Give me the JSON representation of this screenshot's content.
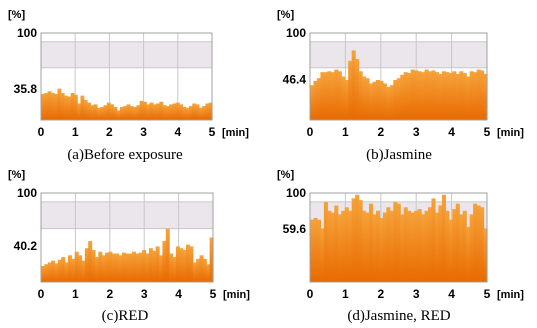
{
  "colors": {
    "bar_top": "#f6a23a",
    "bar_bottom": "#e86a00",
    "band_shade": "#eae6ec",
    "grid": "#c8c8c8",
    "frame": "#a0a0a0"
  },
  "chart_data": [
    {
      "type": "bar",
      "title": "(a)Before exposure",
      "ylabel": "[%]",
      "xlabel": "[min]",
      "ylim": [
        0,
        100
      ],
      "xlim": [
        0,
        5
      ],
      "x_ticks": [
        "0",
        "1",
        "2",
        "3",
        "4",
        "5"
      ],
      "y_tick_top": "100",
      "y_marker_label": "35.8",
      "y_marker_value": 35.8,
      "values": [
        30,
        31,
        33,
        31,
        30,
        36,
        31,
        28,
        27,
        31,
        29,
        19,
        28,
        23,
        20,
        17,
        18,
        14,
        15,
        17,
        20,
        18,
        15,
        11,
        15,
        16,
        18,
        16,
        15,
        17,
        22,
        21,
        18,
        20,
        18,
        19,
        21,
        17,
        16,
        18,
        19,
        20,
        18,
        15,
        14,
        16,
        19,
        18,
        14,
        16,
        19,
        20
      ]
    },
    {
      "type": "bar",
      "title": "(b)Jasmine",
      "ylabel": "[%]",
      "xlabel": "[min]",
      "ylim": [
        0,
        100
      ],
      "xlim": [
        0,
        5
      ],
      "x_ticks": [
        "0",
        "1",
        "2",
        "3",
        "4",
        "5"
      ],
      "y_tick_top": "100",
      "y_marker_label": "46.4",
      "y_marker_value": 46.4,
      "values": [
        40,
        45,
        48,
        55,
        55,
        56,
        55,
        58,
        56,
        50,
        46,
        68,
        80,
        70,
        56,
        50,
        48,
        42,
        44,
        46,
        45,
        42,
        38,
        40,
        46,
        48,
        52,
        55,
        54,
        58,
        57,
        56,
        55,
        58,
        56,
        57,
        55,
        53,
        56,
        55,
        54,
        56,
        53,
        56,
        54,
        50,
        56,
        55,
        58,
        57,
        53
      ]
    },
    {
      "type": "bar",
      "title": "(c)RED",
      "ylabel": "[%]",
      "xlabel": "[min]",
      "ylim": [
        0,
        100
      ],
      "xlim": [
        0,
        5
      ],
      "x_ticks": [
        "0",
        "1",
        "2",
        "3",
        "4",
        "5"
      ],
      "y_tick_top": "100",
      "y_marker_label": "40.2",
      "y_marker_value": 40.2,
      "values": [
        18,
        20,
        22,
        24,
        21,
        25,
        28,
        22,
        30,
        26,
        34,
        30,
        24,
        38,
        46,
        36,
        28,
        34,
        30,
        33,
        34,
        32,
        32,
        30,
        33,
        32,
        32,
        34,
        32,
        33,
        36,
        32,
        38,
        35,
        40,
        30,
        46,
        60,
        32,
        28,
        40,
        38,
        36,
        42,
        40,
        22,
        26,
        30,
        26,
        20,
        50
      ]
    },
    {
      "type": "bar",
      "title": "(d)Jasmine, RED",
      "ylabel": "[%]",
      "xlabel": "[min]",
      "ylim": [
        0,
        100
      ],
      "xlim": [
        0,
        5
      ],
      "x_ticks": [
        "0",
        "1",
        "2",
        "3",
        "4",
        "5"
      ],
      "y_tick_top": "100",
      "y_marker_label": "59.6",
      "y_marker_value": 59.6,
      "values": [
        70,
        72,
        70,
        60,
        90,
        80,
        78,
        86,
        76,
        80,
        84,
        80,
        94,
        98,
        92,
        80,
        78,
        88,
        76,
        80,
        72,
        78,
        84,
        80,
        90,
        88,
        76,
        84,
        80,
        78,
        80,
        82,
        76,
        80,
        84,
        94,
        78,
        86,
        98,
        80,
        70,
        82,
        88,
        76,
        80,
        62,
        76,
        88,
        86,
        84,
        60
      ]
    }
  ]
}
